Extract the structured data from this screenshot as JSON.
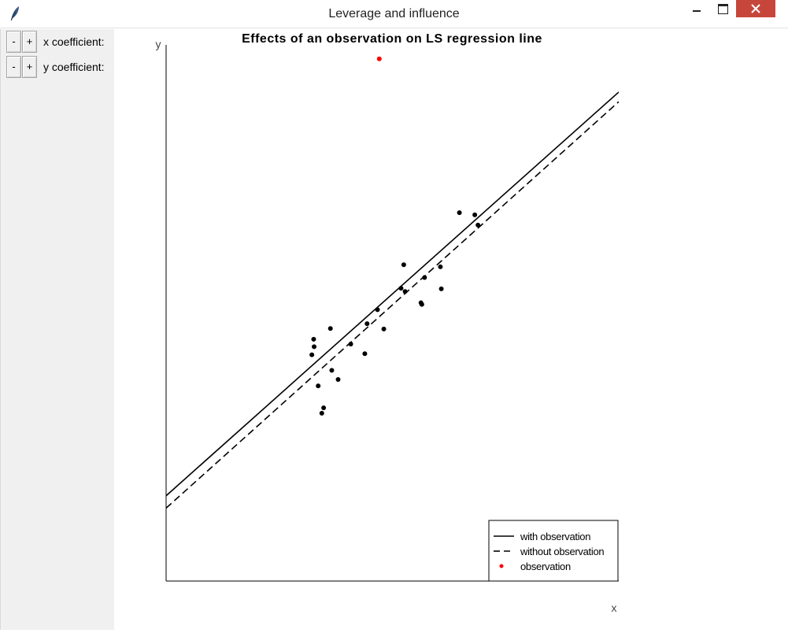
{
  "window": {
    "title": "Leverage and influence"
  },
  "controls": {
    "x": {
      "minus_label": "-",
      "plus_label": "+",
      "label": "x coefficient:"
    },
    "y": {
      "minus_label": "-",
      "plus_label": "+",
      "label": "y coefficient:"
    }
  },
  "colors": {
    "observation": "#ff0000",
    "points": "#000000",
    "close_button": "#c7463c"
  },
  "chart_data": {
    "type": "scatter",
    "title": "Effects of an observation on LS regression line",
    "xlabel": "x",
    "ylabel": "y",
    "xlim": [
      0,
      100
    ],
    "ylim": [
      0,
      100
    ],
    "grid": false,
    "legend_position": "bottom-right",
    "legend": [
      {
        "label": "with observation",
        "style": "solid"
      },
      {
        "label": "without observation",
        "style": "dashed"
      },
      {
        "label": "observation",
        "style": "red-dot"
      }
    ],
    "series": [
      {
        "type": "scatter",
        "points": [
          [
            32.2,
            42.2
          ],
          [
            32.7,
            43.7
          ],
          [
            32.6,
            45.1
          ],
          [
            36.3,
            47.1
          ],
          [
            36.6,
            39.3
          ],
          [
            33.6,
            36.4
          ],
          [
            38.0,
            37.6
          ],
          [
            34.4,
            31.3
          ],
          [
            34.8,
            32.3
          ],
          [
            40.8,
            44.2
          ],
          [
            43.9,
            42.4
          ],
          [
            44.4,
            48.0
          ],
          [
            46.7,
            50.6
          ],
          [
            48.1,
            47.0
          ],
          [
            51.9,
            54.6
          ],
          [
            52.5,
            59.0
          ],
          [
            52.8,
            54.0
          ],
          [
            56.3,
            51.9
          ],
          [
            56.5,
            51.6
          ],
          [
            57.1,
            56.6
          ],
          [
            60.8,
            54.5
          ],
          [
            60.6,
            58.6
          ],
          [
            64.8,
            68.7
          ],
          [
            68.2,
            68.3
          ],
          [
            68.9,
            66.4
          ]
        ]
      },
      {
        "type": "scatter",
        "points": [
          [
            47.1,
            97.4
          ]
        ]
      },
      {
        "type": "line",
        "style": "solid",
        "points": [
          [
            0,
            15.9
          ],
          [
            100,
            91.2
          ]
        ]
      },
      {
        "type": "line",
        "style": "dashed",
        "points": [
          [
            0,
            13.6
          ],
          [
            100,
            89.4
          ]
        ]
      }
    ]
  }
}
